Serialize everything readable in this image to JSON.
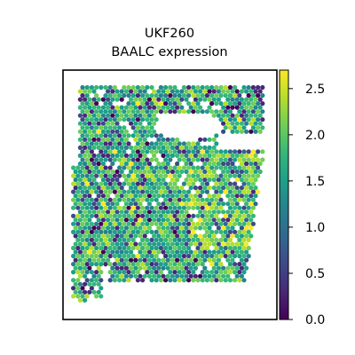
{
  "chart_data": {
    "type": "scatter",
    "title_line1": "UKF260",
    "title_line2": "BAALC expression",
    "colorbar": {
      "colormap": "viridis",
      "range": [
        0.0,
        2.7
      ],
      "ticks": [
        "0.0",
        "0.5",
        "1.0",
        "1.5",
        "2.0",
        "2.5"
      ],
      "tick_values": [
        0.0,
        0.5,
        1.0,
        1.5,
        2.0,
        2.5
      ]
    },
    "xticks": [],
    "yticks": [],
    "grid": false,
    "colors": {
      "viridis": [
        "#440154",
        "#482878",
        "#3e4989",
        "#31688e",
        "#26828e",
        "#1f9e89",
        "#35b779",
        "#6ece58",
        "#b5de2b",
        "#fde725"
      ]
    }
  }
}
